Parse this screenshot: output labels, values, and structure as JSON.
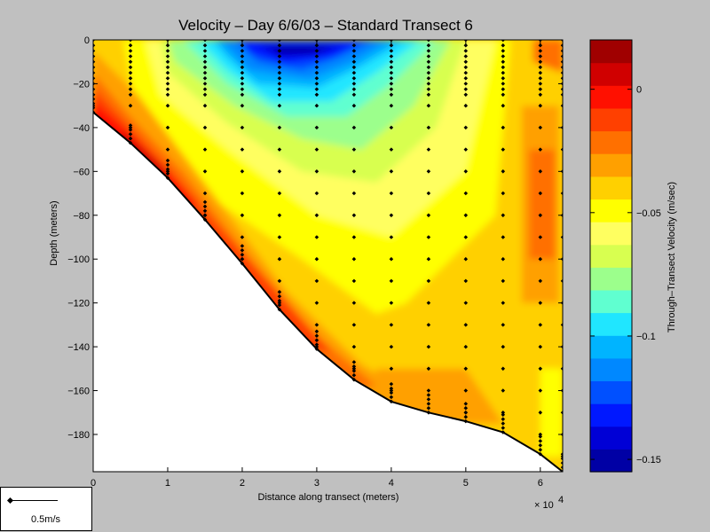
{
  "chart_data": {
    "type": "heatmap",
    "title": "Velocity – Day 6/6/03 – Standard Transect 6",
    "xlabel": "Distance along transect (meters)",
    "ylabel": "Depth (meters)",
    "x_multiplier_label": "× 10",
    "x_multiplier_exp": "4",
    "xlim": [
      0,
      6.3
    ],
    "ylim": [
      -197,
      0
    ],
    "xticks": [
      "0",
      "1",
      "2",
      "3",
      "4",
      "5",
      "6"
    ],
    "yticks": [
      "0",
      "−20",
      "−40",
      "−60",
      "−80",
      "−100",
      "−120",
      "−140",
      "−160",
      "−180"
    ],
    "colorbar": {
      "label": "Through–Transect Velocity (m/sec)",
      "range": [
        -0.155,
        0.02
      ],
      "ticks": [
        0,
        -0.05,
        -0.1,
        -0.15
      ],
      "tick_labels": [
        "0",
        "−0.05",
        "−0.1",
        "−0.15"
      ],
      "colors": [
        "#0000a5",
        "#0000d6",
        "#0018ff",
        "#0050ff",
        "#0088ff",
        "#00b4ff",
        "#20e6ff",
        "#60ffd0",
        "#9cff8c",
        "#d8ff50",
        "#ffff60",
        "#ffff00",
        "#ffd000",
        "#ffa000",
        "#ff7000",
        "#ff4000",
        "#ff1000",
        "#d00000",
        "#a00000"
      ]
    },
    "bottom_profile": [
      [
        0,
        -33
      ],
      [
        0.5,
        -47
      ],
      [
        1,
        -63
      ],
      [
        1.5,
        -82
      ],
      [
        2,
        -102
      ],
      [
        2.5,
        -123
      ],
      [
        3,
        -141
      ],
      [
        3.5,
        -155
      ],
      [
        4,
        -165
      ],
      [
        4.5,
        -170
      ],
      [
        5,
        -174
      ],
      [
        5.5,
        -179
      ],
      [
        6,
        -189
      ],
      [
        6.3,
        -197
      ]
    ],
    "stations": [
      {
        "x": 0,
        "bottom": -33
      },
      {
        "x": 0.5,
        "bottom": -47
      },
      {
        "x": 1,
        "bottom": -63
      },
      {
        "x": 1.5,
        "bottom": -82
      },
      {
        "x": 2,
        "bottom": -102
      },
      {
        "x": 2.5,
        "bottom": -123
      },
      {
        "x": 3,
        "bottom": -141
      },
      {
        "x": 3.5,
        "bottom": -155
      },
      {
        "x": 4,
        "bottom": -165
      },
      {
        "x": 4.5,
        "bottom": -170
      },
      {
        "x": 5,
        "bottom": -174
      },
      {
        "x": 5.5,
        "bottom": -179
      },
      {
        "x": 6,
        "bottom": -189
      },
      {
        "x": 6.3,
        "bottom": -197
      }
    ]
  },
  "scale_legend": {
    "label": "0.5m/s"
  }
}
